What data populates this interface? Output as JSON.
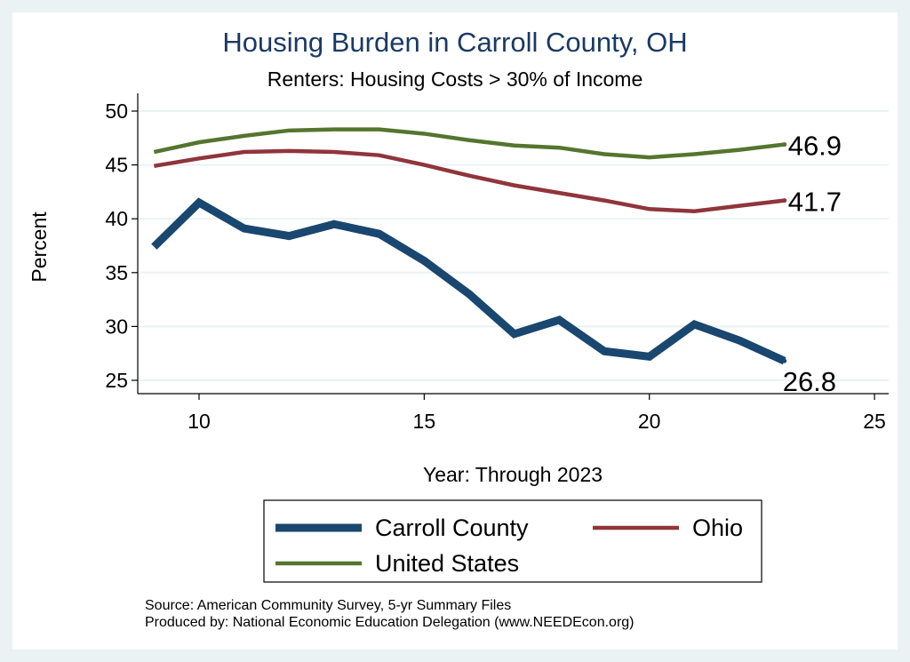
{
  "chart_data": {
    "type": "line",
    "title": "Housing Burden in Carroll County, OH",
    "subtitle": "Renters: Housing Costs > 30% of Income",
    "xlabel": "Year: Through 2023",
    "ylabel": "Percent",
    "xlim": [
      8.7,
      25.3
    ],
    "ylim": [
      24,
      51
    ],
    "xticks": [
      10,
      15,
      20,
      25
    ],
    "yticks": [
      25,
      30,
      35,
      40,
      45,
      50
    ],
    "grid": true,
    "legend_position": "bottom",
    "x": [
      9,
      10,
      11,
      12,
      13,
      14,
      15,
      16,
      17,
      18,
      19,
      20,
      21,
      22,
      23
    ],
    "series": [
      {
        "name": "Carroll County",
        "color": "#1a476f",
        "values": [
          37.4,
          41.5,
          39.1,
          38.4,
          39.5,
          38.6,
          36.1,
          33.0,
          29.3,
          30.6,
          27.7,
          27.2,
          30.2,
          28.7,
          26.8
        ],
        "end_label": "26.8"
      },
      {
        "name": "Ohio",
        "color": "#90353b",
        "values": [
          44.9,
          45.6,
          46.2,
          46.3,
          46.2,
          45.9,
          45.0,
          44.0,
          43.1,
          42.4,
          41.7,
          40.9,
          40.7,
          41.2,
          41.7
        ],
        "end_label": "41.7"
      },
      {
        "name": "United States",
        "color": "#55752f",
        "values": [
          46.2,
          47.1,
          47.7,
          48.2,
          48.3,
          48.3,
          47.9,
          47.3,
          46.8,
          46.6,
          46.0,
          45.7,
          46.0,
          46.4,
          46.9
        ],
        "end_label": "46.9"
      }
    ]
  },
  "notes": {
    "source": "Source: American Community Survey, 5-yr Summary Files",
    "produced": "Produced by: National Economic Education Delegation (www.NEEDEcon.org)"
  }
}
